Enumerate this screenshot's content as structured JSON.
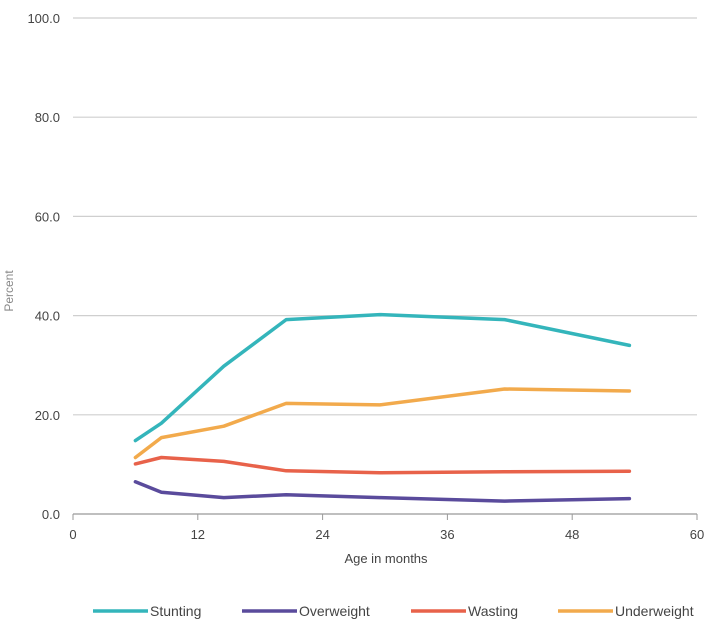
{
  "chart_data": {
    "type": "line",
    "title": "",
    "xlabel": "Age in months",
    "ylabel": "Percent",
    "xlim": [
      0,
      60
    ],
    "ylim": [
      0,
      100
    ],
    "x_ticks": [
      0,
      12,
      24,
      36,
      48,
      60
    ],
    "y_ticks": [
      "0.0",
      "20.0",
      "40.0",
      "60.0",
      "80.0",
      "100.0"
    ],
    "grid": "horizontal",
    "legend_position": "bottom",
    "series": [
      {
        "name": "Stunting",
        "color": "#34b5bb",
        "points": [
          [
            6,
            14.8
          ],
          [
            8.5,
            18.3
          ],
          [
            14.5,
            29.8
          ],
          [
            20.5,
            39.2
          ],
          [
            29.5,
            40.2
          ],
          [
            41.5,
            39.2
          ],
          [
            53.5,
            34.0
          ]
        ]
      },
      {
        "name": "Overweight",
        "color": "#5a4b9c",
        "points": [
          [
            6,
            6.5
          ],
          [
            8.5,
            4.4
          ],
          [
            14.5,
            3.3
          ],
          [
            20.5,
            3.9
          ],
          [
            29.5,
            3.3
          ],
          [
            41.5,
            2.6
          ],
          [
            53.5,
            3.1
          ]
        ]
      },
      {
        "name": "Wasting",
        "color": "#e8624a",
        "points": [
          [
            6,
            10.1
          ],
          [
            8.5,
            11.4
          ],
          [
            14.5,
            10.6
          ],
          [
            20.5,
            8.7
          ],
          [
            29.5,
            8.3
          ],
          [
            41.5,
            8.5
          ],
          [
            53.5,
            8.6
          ]
        ]
      },
      {
        "name": "Underweight",
        "color": "#f2aa4c",
        "points": [
          [
            6,
            11.4
          ],
          [
            8.5,
            15.4
          ],
          [
            14.5,
            17.7
          ],
          [
            20.5,
            22.3
          ],
          [
            29.5,
            22.0
          ],
          [
            41.5,
            25.2
          ],
          [
            53.5,
            24.8
          ]
        ]
      }
    ]
  }
}
